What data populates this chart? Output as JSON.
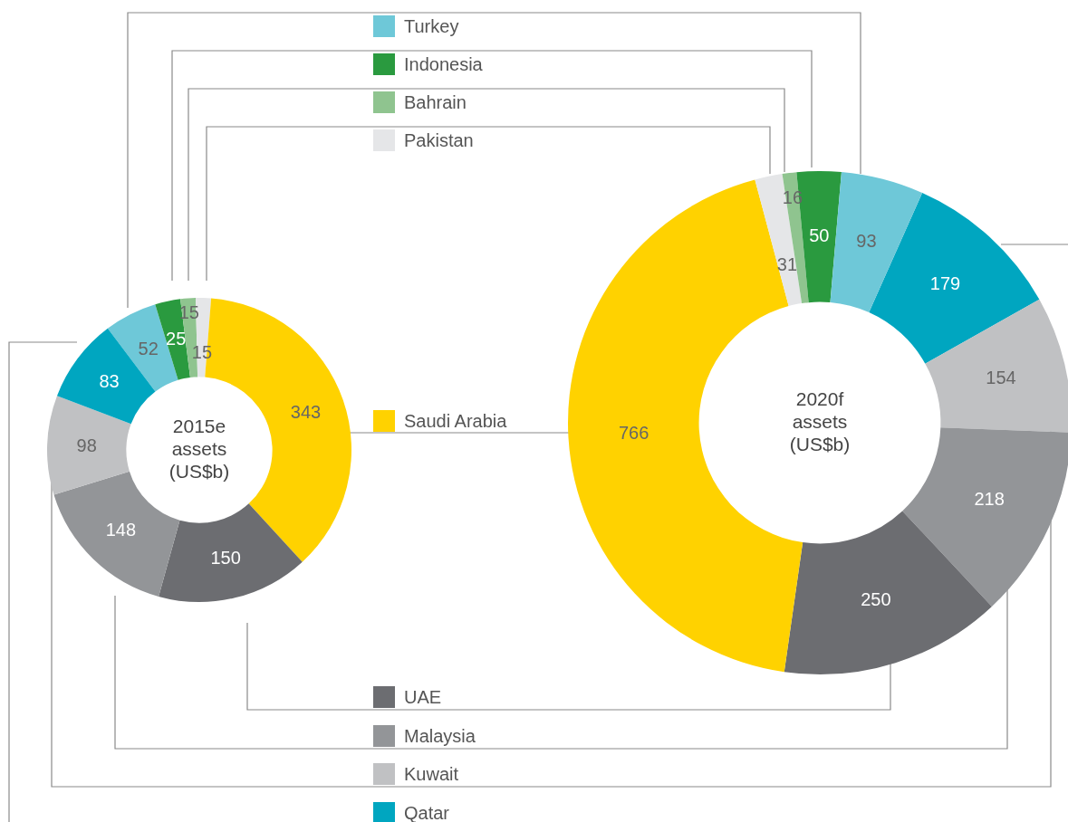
{
  "chart_data": {
    "type": "donut",
    "categories": [
      "Turkey",
      "Indonesia",
      "Bahrain",
      "Pakistan",
      "Saudi Arabia",
      "UAE",
      "Malaysia",
      "Kuwait",
      "Qatar"
    ],
    "colors": [
      "#6ec8d8",
      "#2a9a3f",
      "#8fc48f",
      "#e5e6e8",
      "#ffd200",
      "#6c6d71",
      "#939598",
      "#c0c1c3",
      "#00a6c0"
    ],
    "series": [
      {
        "name": "2015e\nassets\n(US$b)",
        "values": [
          52,
          25,
          15,
          15,
          343,
          150,
          148,
          98,
          83
        ]
      },
      {
        "name": "2020f\nassets\n(US$b)",
        "values": [
          93,
          50,
          16,
          31,
          766,
          250,
          218,
          154,
          179
        ]
      }
    ],
    "data_labels": true,
    "legend": "top left"
  }
}
